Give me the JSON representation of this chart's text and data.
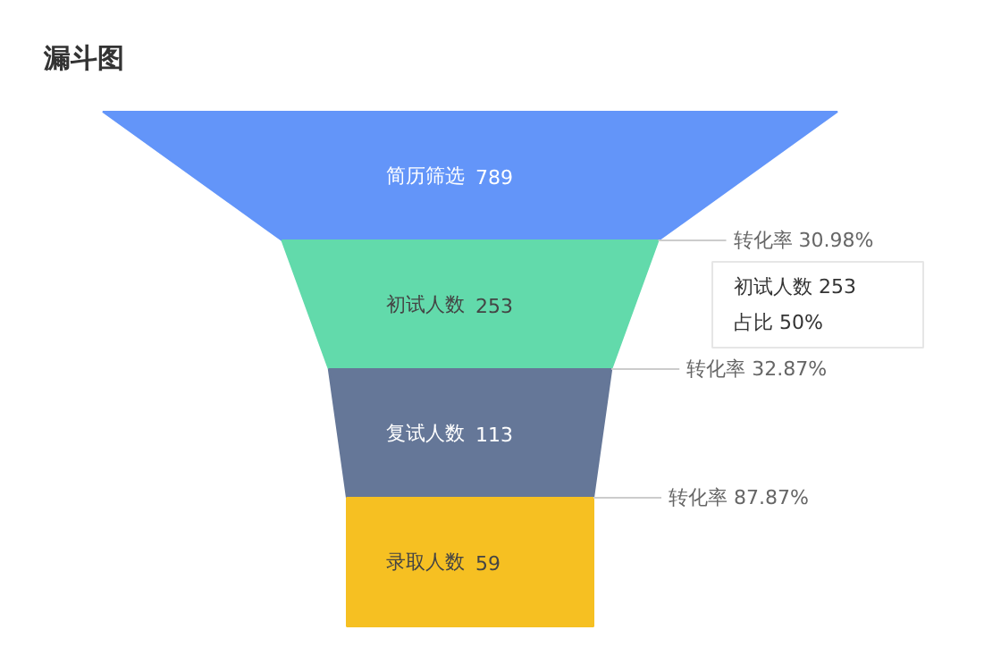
{
  "chart_data": {
    "type": "other",
    "title": "漏斗图",
    "categories": [
      "简历筛选",
      "初试人数",
      "复试人数",
      "录取人数"
    ],
    "values": [
      789,
      253,
      113,
      59
    ],
    "data_labels": true,
    "colors": [
      "#6395f9",
      "#62daab",
      "#657798",
      "#f6c022"
    ],
    "annotations": [
      "转化率 30.98%",
      "转化率 32.87%",
      "转化率 87.87%",
      "初试人数 253",
      "占比 50%"
    ]
  }
}
